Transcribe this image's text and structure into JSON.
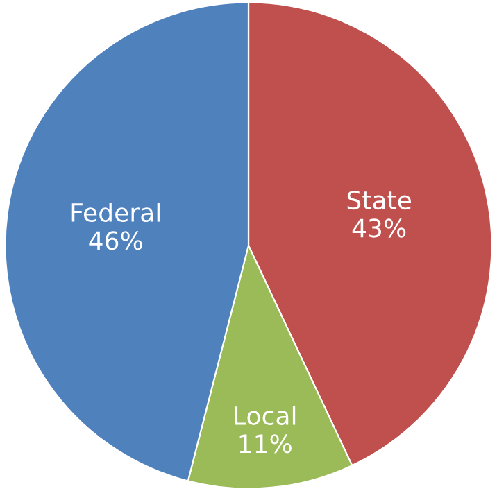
{
  "chart_data": {
    "type": "pie",
    "categories": [
      "State",
      "Local",
      "Federal"
    ],
    "values": [
      43,
      11,
      46
    ],
    "value_labels": [
      "43%",
      "11%",
      "46%"
    ],
    "colors": [
      "#c0504d",
      "#9bbb59",
      "#4f81bd"
    ],
    "legend": false
  }
}
